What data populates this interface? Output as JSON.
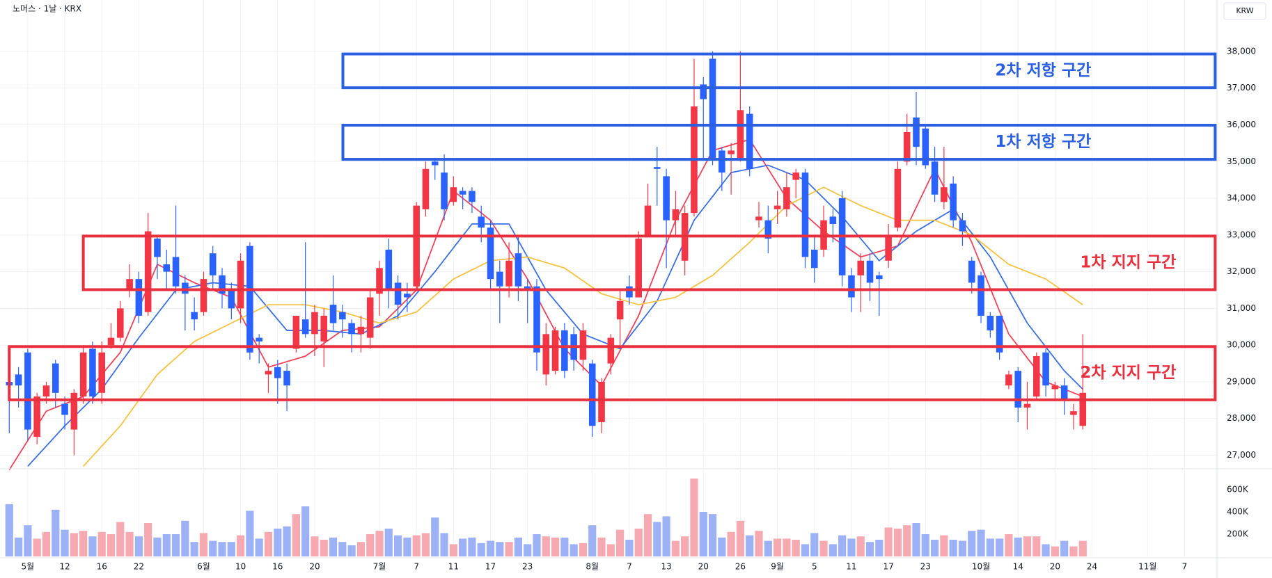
{
  "chart_data": {
    "type": "candlestick",
    "title": "노머스 · 1날 · KRX",
    "currency": "KRW",
    "up_color": "#f23645",
    "down_color": "#2962ff",
    "xlim": [
      -1,
      130.5
    ],
    "ylim": [
      26650,
      39400
    ],
    "yticks": [
      {
        "value": 27000,
        "label": "27,000"
      },
      {
        "value": 28000,
        "label": "28,000"
      },
      {
        "value": 29000,
        "label": "29,000"
      },
      {
        "value": 30000,
        "label": "30,000"
      },
      {
        "value": 31000,
        "label": "31,000"
      },
      {
        "value": 32000,
        "label": "32,000"
      },
      {
        "value": 33000,
        "label": "33,000"
      },
      {
        "value": 34000,
        "label": "34,000"
      },
      {
        "value": 35000,
        "label": "35,000"
      },
      {
        "value": 36000,
        "label": "36,000"
      },
      {
        "value": 37000,
        "label": "37,000"
      },
      {
        "value": 38000,
        "label": "38,000"
      }
    ],
    "xticks": [
      {
        "value": 2,
        "label": "5월"
      },
      {
        "value": 6,
        "label": "12"
      },
      {
        "value": 10,
        "label": "16"
      },
      {
        "value": 14,
        "label": "22"
      },
      {
        "value": 21,
        "label": "6월"
      },
      {
        "value": 25,
        "label": "10"
      },
      {
        "value": 29,
        "label": "16"
      },
      {
        "value": 33,
        "label": "20"
      },
      {
        "value": 40,
        "label": "7월"
      },
      {
        "value": 44,
        "label": "7"
      },
      {
        "value": 48,
        "label": "11"
      },
      {
        "value": 52,
        "label": "17"
      },
      {
        "value": 56,
        "label": "23"
      },
      {
        "value": 63,
        "label": "8월"
      },
      {
        "value": 67,
        "label": "7"
      },
      {
        "value": 71,
        "label": "13"
      },
      {
        "value": 75,
        "label": "20"
      },
      {
        "value": 79,
        "label": "26"
      },
      {
        "value": 83,
        "label": "9월"
      },
      {
        "value": 87,
        "label": "5"
      },
      {
        "value": 91,
        "label": "11"
      },
      {
        "value": 95,
        "label": "17"
      },
      {
        "value": 99,
        "label": "23"
      },
      {
        "value": 105,
        "label": "10월"
      },
      {
        "value": 109,
        "label": "14"
      },
      {
        "value": 113,
        "label": "20"
      },
      {
        "value": 117,
        "label": "24"
      },
      {
        "value": 123,
        "label": "11월"
      },
      {
        "value": 127,
        "label": "7"
      }
    ],
    "grid": true,
    "candles": [
      [
        29000,
        29200,
        27600,
        28900
      ],
      [
        29200,
        29400,
        28300,
        28900
      ],
      [
        29800,
        29900,
        27400,
        27700
      ],
      [
        27500,
        28700,
        27300,
        28600
      ],
      [
        28600,
        29000,
        28400,
        28900
      ],
      [
        29500,
        29600,
        28300,
        28700
      ],
      [
        28400,
        28600,
        27700,
        28100
      ],
      [
        27700,
        28800,
        27000,
        28700
      ],
      [
        28600,
        30000,
        28400,
        29800
      ],
      [
        29900,
        30100,
        28400,
        28600
      ],
      [
        28700,
        30100,
        28400,
        29800
      ],
      [
        30000,
        30600,
        29900,
        30200
      ],
      [
        30200,
        31200,
        30100,
        31000
      ],
      [
        31500,
        32200,
        31300,
        31800
      ],
      [
        31800,
        32000,
        30600,
        30800
      ],
      [
        30900,
        33600,
        30800,
        33100
      ],
      [
        32900,
        33000,
        31800,
        32400
      ],
      [
        32200,
        32600,
        31500,
        32000
      ],
      [
        32400,
        33800,
        31400,
        31600
      ],
      [
        31700,
        31900,
        30400,
        31400
      ],
      [
        30900,
        31300,
        30400,
        30700
      ],
      [
        30900,
        32000,
        30800,
        31800
      ],
      [
        32500,
        32700,
        31500,
        31900
      ],
      [
        31900,
        32100,
        31000,
        31400
      ],
      [
        31500,
        31700,
        30700,
        31000
      ],
      [
        31000,
        32500,
        30600,
        32300
      ],
      [
        32700,
        32800,
        29600,
        29800
      ],
      [
        30200,
        30300,
        29500,
        30100
      ],
      [
        29200,
        29500,
        28700,
        29300
      ],
      [
        29400,
        29600,
        28400,
        29100
      ],
      [
        29300,
        29500,
        28200,
        28900
      ],
      [
        29900,
        30800,
        29800,
        30800
      ],
      [
        30700,
        32800,
        30200,
        30300
      ],
      [
        30300,
        31100,
        29700,
        30900
      ],
      [
        30100,
        31000,
        29400,
        30800
      ],
      [
        31100,
        31900,
        30400,
        30600
      ],
      [
        30900,
        31100,
        30200,
        30700
      ],
      [
        30600,
        30700,
        29800,
        30300
      ],
      [
        30300,
        30800,
        29800,
        30500
      ],
      [
        30200,
        31500,
        29900,
        31300
      ],
      [
        31400,
        32300,
        30800,
        32100
      ],
      [
        32600,
        32900,
        31000,
        31500
      ],
      [
        31700,
        31900,
        30700,
        31100
      ],
      [
        31400,
        31700,
        30900,
        31300
      ],
      [
        31600,
        33900,
        31500,
        33800
      ],
      [
        33700,
        35000,
        33500,
        34800
      ],
      [
        35000,
        35100,
        34500,
        34900
      ],
      [
        34700,
        35200,
        33400,
        33700
      ],
      [
        33900,
        34600,
        33800,
        34300
      ],
      [
        34200,
        34300,
        33700,
        34100
      ],
      [
        34200,
        34300,
        33600,
        33900
      ],
      [
        33500,
        33800,
        32800,
        33200
      ],
      [
        33200,
        33400,
        31500,
        31800
      ],
      [
        32000,
        32300,
        30600,
        31600
      ],
      [
        31600,
        32800,
        31300,
        32300
      ],
      [
        32500,
        33000,
        31200,
        31600
      ],
      [
        31600,
        31800,
        30600,
        31500
      ],
      [
        31600,
        31800,
        29300,
        29800
      ],
      [
        29200,
        30600,
        28900,
        30300
      ],
      [
        29300,
        30500,
        29200,
        30400
      ],
      [
        30400,
        30600,
        29100,
        29300
      ],
      [
        30300,
        30500,
        29300,
        29600
      ],
      [
        29600,
        30600,
        29300,
        30400
      ],
      [
        29500,
        29600,
        27500,
        27800
      ],
      [
        27900,
        29100,
        27600,
        29000
      ],
      [
        29500,
        30300,
        29200,
        30200
      ],
      [
        30700,
        31500,
        30000,
        31200
      ],
      [
        31600,
        31900,
        31100,
        31300
      ],
      [
        31300,
        33100,
        31300,
        32900
      ],
      [
        33000,
        34400,
        33000,
        33800
      ],
      [
        34850,
        35400,
        33800,
        34800
      ],
      [
        34600,
        34800,
        32100,
        33400
      ],
      [
        33400,
        34200,
        33000,
        33700
      ],
      [
        32300,
        33800,
        31900,
        33600
      ],
      [
        33600,
        37800,
        33500,
        36500
      ],
      [
        37100,
        37300,
        35100,
        36700
      ],
      [
        37800,
        38000,
        34900,
        35100
      ],
      [
        35300,
        35400,
        34200,
        34700
      ],
      [
        35200,
        35500,
        34100,
        35300
      ],
      [
        35100,
        38000,
        35000,
        36400
      ],
      [
        36300,
        36500,
        34600,
        34800
      ],
      [
        33400,
        33900,
        33200,
        33500
      ],
      [
        33400,
        33800,
        32500,
        32900
      ],
      [
        33700,
        34200,
        33300,
        33800
      ],
      [
        33700,
        34700,
        33500,
        34300
      ],
      [
        34500,
        34800,
        34000,
        34700
      ],
      [
        34700,
        34800,
        32100,
        32400
      ],
      [
        32600,
        33000,
        31700,
        32100
      ],
      [
        32600,
        33800,
        32400,
        33400
      ],
      [
        33500,
        33700,
        32800,
        33300
      ],
      [
        34000,
        34200,
        31600,
        31900
      ],
      [
        31900,
        32100,
        30900,
        31300
      ],
      [
        31900,
        32500,
        30900,
        32300
      ],
      [
        32300,
        32500,
        31200,
        31700
      ],
      [
        31900,
        32000,
        30800,
        31800
      ],
      [
        32300,
        33300,
        32100,
        33000
      ],
      [
        33200,
        35000,
        33100,
        34800
      ],
      [
        35000,
        36300,
        34900,
        35800
      ],
      [
        36200,
        36900,
        34900,
        35400
      ],
      [
        35900,
        36000,
        34800,
        34900
      ],
      [
        35000,
        35400,
        33900,
        34100
      ],
      [
        33900,
        35400,
        33700,
        34300
      ],
      [
        34400,
        34600,
        33200,
        33400
      ],
      [
        33400,
        33600,
        32700,
        33100
      ],
      [
        32300,
        32400,
        31400,
        31700
      ],
      [
        31900,
        32000,
        30600,
        30800
      ],
      [
        30800,
        30900,
        30200,
        30400
      ],
      [
        30800,
        30800,
        29600,
        29800
      ],
      [
        28900,
        29300,
        28800,
        29200
      ],
      [
        29300,
        29400,
        27900,
        28300
      ],
      [
        28300,
        29000,
        27700,
        28400
      ],
      [
        28600,
        29800,
        28500,
        29700
      ],
      [
        29800,
        29900,
        28600,
        28900
      ],
      [
        28800,
        29000,
        28500,
        28900
      ],
      [
        28900,
        29100,
        28100,
        28500
      ],
      [
        28100,
        28400,
        27700,
        28200
      ],
      [
        27800,
        30300,
        27700,
        28700
      ]
    ],
    "moving_averages": [
      {
        "color": "#f0435a",
        "x": [
          0,
          4,
          8,
          12,
          16,
          20,
          24,
          28,
          32,
          36,
          40,
          44,
          48,
          52,
          56,
          60,
          64,
          68,
          72,
          76,
          80,
          84,
          88,
          92,
          96,
          100,
          104,
          108,
          112,
          116
        ],
        "values": [
          26600,
          28200,
          28600,
          29800,
          32200,
          31700,
          31300,
          29400,
          29700,
          30400,
          30500,
          31500,
          34200,
          33400,
          31800,
          29900,
          28900,
          30800,
          33400,
          35300,
          35600,
          34000,
          33100,
          32400,
          32700,
          34800,
          32800,
          30300,
          29000,
          28600
        ]
      },
      {
        "color": "#3b6fe8",
        "x": [
          2,
          6,
          10,
          14,
          18,
          22,
          26,
          30,
          34,
          38,
          42,
          46,
          50,
          54,
          58,
          62,
          66,
          70,
          74,
          78,
          82,
          86,
          90,
          94,
          98,
          102,
          106,
          110,
          114,
          116
        ],
        "values": [
          26700,
          27800,
          28800,
          30200,
          31500,
          31700,
          31600,
          30400,
          30400,
          30300,
          30800,
          32000,
          33300,
          33300,
          31500,
          30300,
          29900,
          31200,
          33400,
          34700,
          34900,
          34500,
          33500,
          32300,
          33100,
          33700,
          32400,
          30600,
          29300,
          28800
        ]
      },
      {
        "color": "#f5c242",
        "x": [
          8,
          12,
          16,
          20,
          24,
          28,
          32,
          36,
          40,
          44,
          48,
          52,
          56,
          60,
          64,
          68,
          72,
          76,
          80,
          84,
          88,
          92,
          96,
          100,
          104,
          108,
          112,
          116
        ],
        "values": [
          26700,
          27800,
          29200,
          30100,
          30600,
          31100,
          31100,
          30900,
          30600,
          30900,
          31800,
          32300,
          32400,
          32100,
          31400,
          31100,
          31300,
          31900,
          32800,
          33800,
          34300,
          33800,
          33400,
          33400,
          33000,
          32200,
          31800,
          31100
        ]
      }
    ],
    "zones": [
      {
        "label": "2차 저항 구간",
        "color": "#2a5fe0",
        "range": [
          37010,
          37930
        ],
        "x": [
          36.05,
          130.3
        ]
      },
      {
        "label": "1차 저항 구간",
        "color": "#2a5fe0",
        "range": [
          35060,
          35990
        ],
        "x": [
          36.05,
          130.3
        ]
      },
      {
        "label": "1차 지지 구간",
        "color": "#e8303f",
        "range": [
          31510,
          32970
        ],
        "x": [
          8,
          130.3
        ]
      },
      {
        "label": "2차 지지 구간",
        "color": "#e8303f",
        "range": [
          28510,
          29960
        ],
        "x": [
          0,
          130.3
        ]
      }
    ],
    "volume": {
      "ylim": [
        0,
        775000
      ],
      "up_color": "#f7a9b2",
      "down_color": "#9db1f7",
      "yticks": [
        {
          "value": 200000,
          "label": "200K"
        },
        {
          "value": 400000,
          "label": "400K"
        },
        {
          "value": 600000,
          "label": "600K"
        }
      ],
      "values": [
        470000,
        170000,
        280000,
        160000,
        220000,
        420000,
        240000,
        210000,
        230000,
        180000,
        220000,
        200000,
        310000,
        220000,
        180000,
        300000,
        170000,
        200000,
        200000,
        320000,
        130000,
        210000,
        140000,
        130000,
        130000,
        190000,
        410000,
        160000,
        220000,
        250000,
        270000,
        380000,
        450000,
        180000,
        150000,
        170000,
        130000,
        100000,
        130000,
        200000,
        230000,
        250000,
        190000,
        170000,
        190000,
        210000,
        350000,
        210000,
        110000,
        160000,
        170000,
        120000,
        140000,
        130000,
        130000,
        170000,
        110000,
        200000,
        180000,
        170000,
        170000,
        110000,
        120000,
        280000,
        170000,
        110000,
        240000,
        150000,
        250000,
        380000,
        310000,
        360000,
        140000,
        180000,
        700000,
        400000,
        380000,
        170000,
        220000,
        320000,
        190000,
        230000,
        140000,
        160000,
        160000,
        150000,
        110000,
        210000,
        140000,
        110000,
        190000,
        160000,
        180000,
        130000,
        150000,
        260000,
        250000,
        280000,
        300000,
        200000,
        150000,
        190000,
        150000,
        140000,
        230000,
        240000,
        160000,
        160000,
        200000,
        170000,
        180000,
        180000,
        110000,
        90000,
        140000,
        90000,
        140000
      ]
    }
  }
}
